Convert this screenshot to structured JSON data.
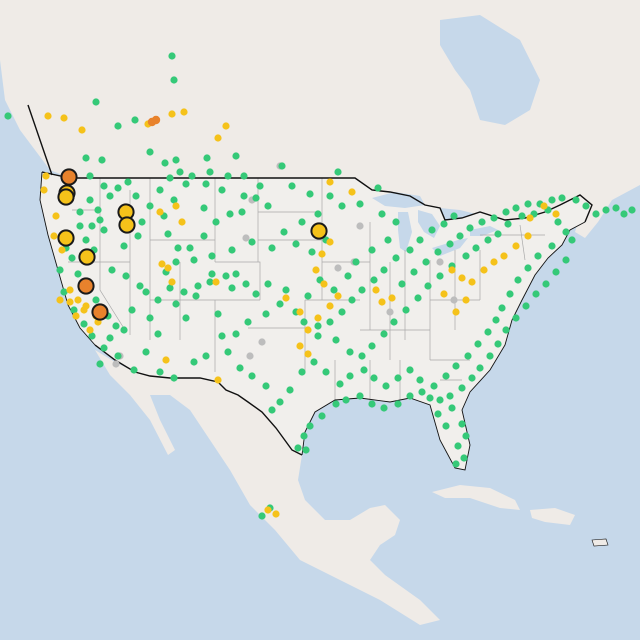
{
  "map": {
    "type": "point-map",
    "region": "North America",
    "colors": {
      "ocean": "#c6d8ea",
      "land": "#efebe7",
      "usa_land": "#f1efec",
      "lakes": "#c6d8ea",
      "border": "#111111",
      "state_lines": "#a9a9a9",
      "marker_good": "#35c978",
      "marker_moderate": "#f5c21a",
      "marker_usg": "#e8822c",
      "marker_none": "#bdbdbd",
      "highlight_stroke": "#1a1a1a"
    },
    "marker_categories": [
      {
        "key": "good",
        "color_key": "marker_good"
      },
      {
        "key": "moderate",
        "color_key": "marker_moderate"
      },
      {
        "key": "usg",
        "color_key": "marker_usg"
      },
      {
        "key": "none",
        "color_key": "marker_none"
      }
    ],
    "highlighted_markers": [
      {
        "category": "usg"
      },
      {
        "category": "moderate"
      },
      {
        "category": "moderate"
      },
      {
        "category": "moderate"
      },
      {
        "category": "moderate"
      },
      {
        "category": "moderate"
      },
      {
        "category": "moderate"
      },
      {
        "category": "usg"
      },
      {
        "category": "usg"
      }
    ]
  }
}
